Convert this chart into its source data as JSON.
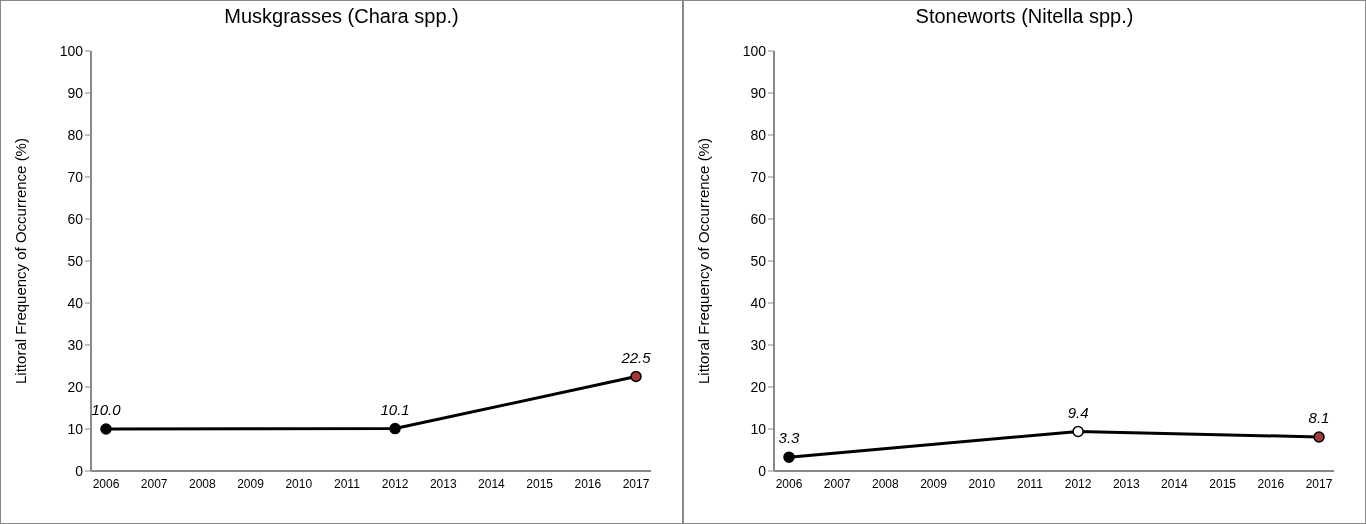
{
  "chart_data": [
    {
      "type": "line",
      "title": "Muskgrasses (Chara spp.)",
      "ylabel": "Littoral Frequency of Occurrence (%)",
      "categories": [
        "2006",
        "2007",
        "2008",
        "2009",
        "2010",
        "2011",
        "2012",
        "2013",
        "2014",
        "2015",
        "2016",
        "2017"
      ],
      "ylim": [
        0,
        100
      ],
      "yticks": [
        0,
        10,
        20,
        30,
        40,
        50,
        60,
        70,
        80,
        90,
        100
      ],
      "marker": "circle",
      "line_style": "solid",
      "series": [
        {
          "color": "#000000",
          "values": [
            10.0,
            null,
            null,
            null,
            null,
            null,
            10.1,
            null,
            null,
            null,
            null,
            22.5
          ],
          "value_labels": [
            "10.0",
            null,
            null,
            null,
            null,
            null,
            "10.1",
            null,
            null,
            null,
            null,
            "22.5"
          ],
          "colors": [
            "#000000",
            null,
            null,
            null,
            null,
            null,
            "#000000",
            null,
            null,
            null,
            null,
            "#9e3a38"
          ]
        }
      ]
    },
    {
      "type": "line",
      "title": "Stoneworts (Nitella spp.)",
      "ylabel": "Littoral Frequency of Occurrence (%)",
      "categories": [
        "2006",
        "2007",
        "2008",
        "2009",
        "2010",
        "2011",
        "2012",
        "2013",
        "2014",
        "2015",
        "2016",
        "2017"
      ],
      "ylim": [
        0,
        100
      ],
      "yticks": [
        0,
        10,
        20,
        30,
        40,
        50,
        60,
        70,
        80,
        90,
        100
      ],
      "marker": "circle",
      "line_style": "solid",
      "series": [
        {
          "color": "#000000",
          "values": [
            3.3,
            null,
            null,
            null,
            null,
            null,
            9.4,
            null,
            null,
            null,
            null,
            8.1
          ],
          "value_labels": [
            "3.3",
            null,
            null,
            null,
            null,
            null,
            "9.4",
            null,
            null,
            null,
            null,
            "8.1"
          ],
          "colors": [
            "#000000",
            null,
            null,
            null,
            null,
            null,
            "#ffffff",
            null,
            null,
            null,
            null,
            "#9e3a38"
          ]
        }
      ]
    }
  ]
}
